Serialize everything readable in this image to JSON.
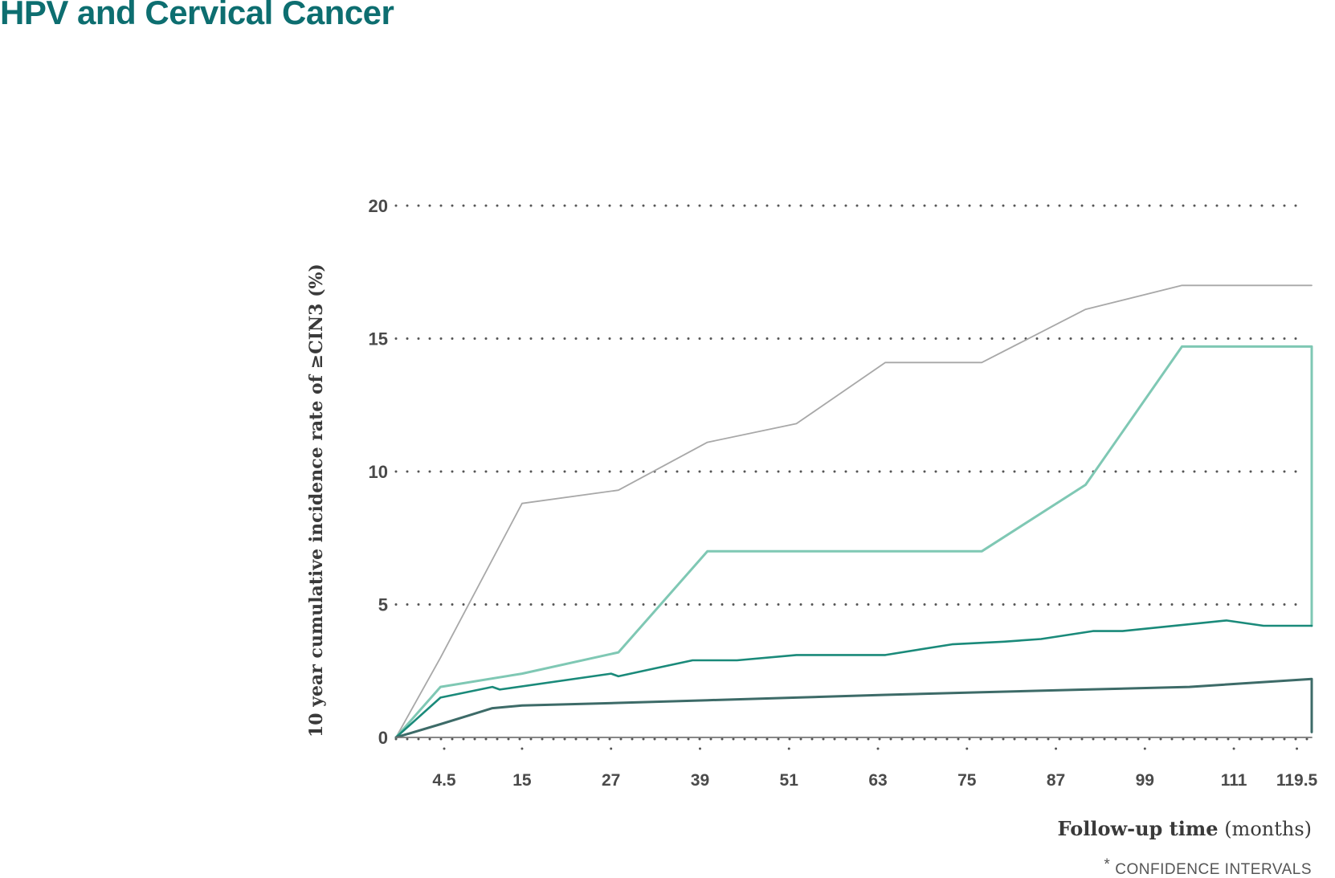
{
  "page": {
    "title": "HPV and Cervical Cancer"
  },
  "chart_data": {
    "type": "line",
    "ylabel": "10 year cumulative incidence rate  of ≥CIN3 (%)",
    "xlabel_bold": "Follow-up time",
    "xlabel_rest": " (months)",
    "footnote_mark": "*",
    "footnote": "CONFIDENCE INTERVALS",
    "ylim": [
      0,
      20
    ],
    "yticks": [
      "0",
      "5",
      "10",
      "15",
      "20"
    ],
    "xticks": [
      {
        "x": 4.5,
        "label": "4.5"
      },
      {
        "x": 15,
        "label": "15"
      },
      {
        "x": 27,
        "label": "27"
      },
      {
        "x": 39,
        "label": "39"
      },
      {
        "x": 51,
        "label": "51"
      },
      {
        "x": 63,
        "label": "63"
      },
      {
        "x": 75,
        "label": "75"
      },
      {
        "x": 87,
        "label": "87"
      },
      {
        "x": 99,
        "label": "99"
      },
      {
        "x": 111,
        "label": "111"
      },
      {
        "x": 119.5,
        "label": "119.5"
      }
    ],
    "xlim": [
      -2,
      121.5
    ],
    "grid": "horizontal-dotted",
    "series": [
      {
        "key": "upper-ci-grey",
        "color": "#a8a8a8",
        "width": 1.8,
        "points": [
          [
            -2,
            0
          ],
          [
            4,
            3.0
          ],
          [
            15,
            8.8
          ],
          [
            28,
            9.3
          ],
          [
            40,
            11.1
          ],
          [
            52,
            11.8
          ],
          [
            64,
            14.1
          ],
          [
            77,
            14.1
          ],
          [
            91,
            16.1
          ],
          [
            104,
            17.0
          ],
          [
            121.5,
            17.0
          ]
        ]
      },
      {
        "key": "upper-ci-teal",
        "color": "#7fc8b4",
        "width": 3,
        "points": [
          [
            -2,
            0
          ],
          [
            4,
            1.9
          ],
          [
            15,
            2.4
          ],
          [
            28,
            3.2
          ],
          [
            40,
            7.0
          ],
          [
            52,
            7.0
          ],
          [
            64,
            7.0
          ],
          [
            77,
            7.0
          ],
          [
            91,
            9.5
          ],
          [
            104,
            14.7
          ],
          [
            121.5,
            14.7
          ],
          [
            121.5,
            4.2
          ]
        ]
      },
      {
        "key": "estimate",
        "color": "#1a8a7a",
        "width": 2.6,
        "points": [
          [
            -2,
            0
          ],
          [
            4,
            1.5
          ],
          [
            11,
            1.9
          ],
          [
            12,
            1.8
          ],
          [
            27,
            2.4
          ],
          [
            28,
            2.3
          ],
          [
            33,
            2.6
          ],
          [
            38,
            2.9
          ],
          [
            44,
            2.9
          ],
          [
            52,
            3.1
          ],
          [
            57,
            3.1
          ],
          [
            64,
            3.1
          ],
          [
            73,
            3.5
          ],
          [
            80,
            3.6
          ],
          [
            85,
            3.7
          ],
          [
            92,
            4.0
          ],
          [
            96,
            4.0
          ],
          [
            110,
            4.4
          ],
          [
            115,
            4.2
          ],
          [
            121.5,
            4.2
          ]
        ]
      },
      {
        "key": "lower-ci",
        "color": "#3d6b68",
        "width": 3,
        "points": [
          [
            -2,
            0
          ],
          [
            4,
            0.5
          ],
          [
            11,
            1.1
          ],
          [
            15,
            1.2
          ],
          [
            28,
            1.3
          ],
          [
            40,
            1.4
          ],
          [
            52,
            1.5
          ],
          [
            64,
            1.6
          ],
          [
            77,
            1.7
          ],
          [
            91,
            1.8
          ],
          [
            105,
            1.9
          ],
          [
            121.5,
            2.2
          ],
          [
            121.5,
            0.2
          ]
        ]
      },
      {
        "key": "baseline",
        "color": "#777777",
        "width": 1.8,
        "points": [
          [
            -2,
            0
          ],
          [
            121.5,
            0
          ]
        ]
      }
    ]
  }
}
